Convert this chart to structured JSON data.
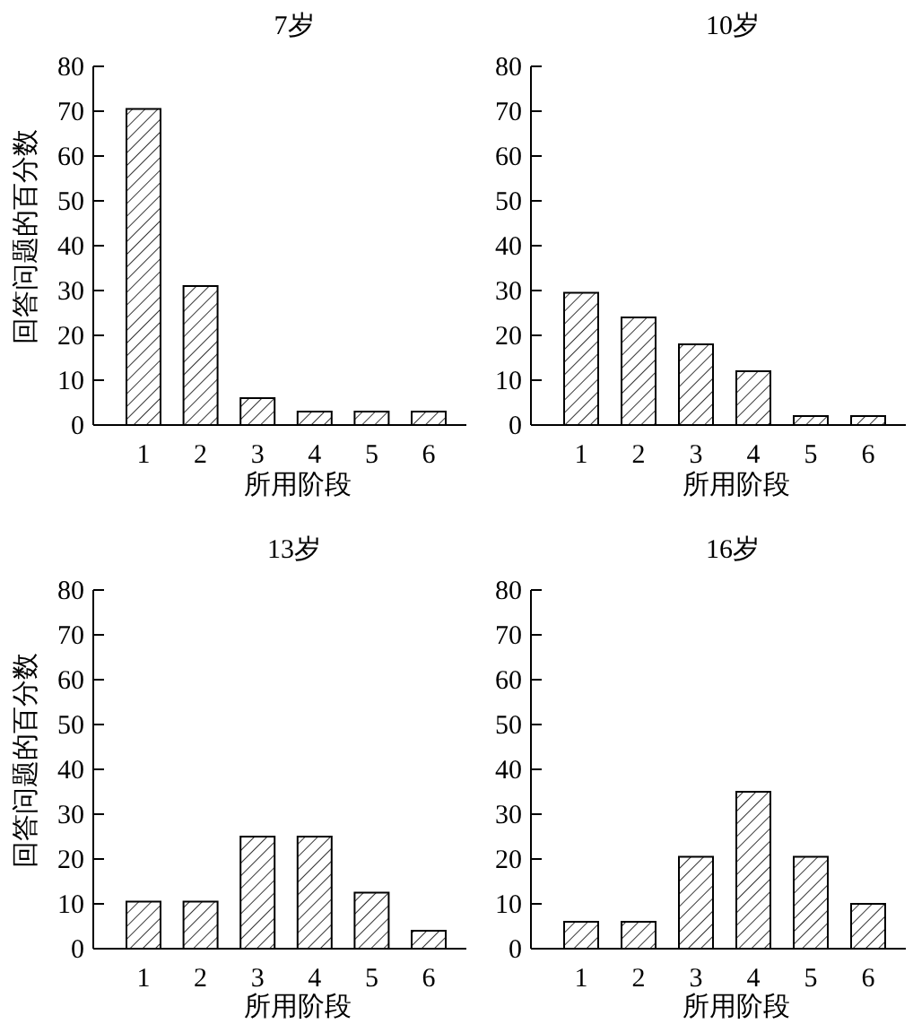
{
  "chart_data": [
    {
      "type": "bar",
      "title": "7岁",
      "xlabel": "所用阶段",
      "ylabel": "回答问题的百分数",
      "categories": [
        "1",
        "2",
        "3",
        "4",
        "5",
        "6"
      ],
      "values": [
        70.5,
        31,
        6,
        3,
        3,
        3
      ],
      "color": "#000000",
      "ylim": [
        0,
        80
      ],
      "yticks": [
        0,
        10,
        20,
        30,
        40,
        50,
        60,
        70,
        80
      ]
    },
    {
      "type": "bar",
      "title": "10岁",
      "xlabel": "所用阶段",
      "categories": [
        "1",
        "2",
        "3",
        "4",
        "5",
        "6"
      ],
      "values": [
        29.5,
        24,
        18,
        12,
        2,
        2
      ],
      "color": "#000000",
      "ylim": [
        0,
        80
      ],
      "yticks": [
        0,
        10,
        20,
        30,
        40,
        50,
        60,
        70,
        80
      ]
    },
    {
      "type": "bar",
      "title": "13岁",
      "xlabel": "所用阶段",
      "ylabel": "回答问题的百分数",
      "categories": [
        "1",
        "2",
        "3",
        "4",
        "5",
        "6"
      ],
      "values": [
        10.5,
        10.5,
        25,
        25,
        12.5,
        4
      ],
      "color": "#000000",
      "ylim": [
        0,
        80
      ],
      "yticks": [
        0,
        10,
        20,
        30,
        40,
        50,
        60,
        70,
        80
      ]
    },
    {
      "type": "bar",
      "title": "16岁",
      "xlabel": "所用阶段",
      "categories": [
        "1",
        "2",
        "3",
        "4",
        "5",
        "6"
      ],
      "values": [
        6,
        6,
        20.5,
        35,
        20.5,
        10
      ],
      "color": "#000000",
      "ylim": [
        0,
        80
      ],
      "yticks": [
        0,
        10,
        20,
        30,
        40,
        50,
        60,
        70,
        80
      ]
    }
  ]
}
